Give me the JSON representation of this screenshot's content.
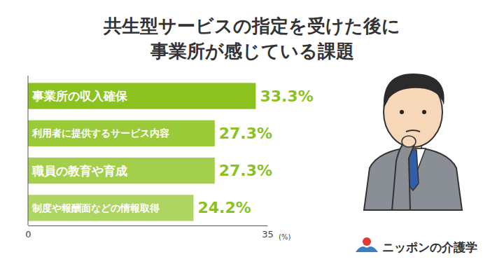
{
  "chart_data": {
    "type": "bar",
    "orientation": "horizontal",
    "title": "共生型サービスの指定を受けた後に\n事業所が感じている課題",
    "categories": [
      "事業所の収入確保",
      "利用者に提供するサービス内容",
      "職員の教育や育成",
      "制度や報酬面などの情報取得"
    ],
    "values": [
      33.3,
      27.3,
      27.3,
      24.2
    ],
    "value_labels": [
      "33.3%",
      "27.3%",
      "27.3%",
      "24.2%"
    ],
    "colors": [
      "#8cc21f",
      "#9aca38",
      "#a4cf4c",
      "#aed462"
    ],
    "xlim": [
      0,
      35
    ],
    "xticks": [
      0,
      35
    ],
    "x_label": "(%)",
    "data_labels": true,
    "grid": false,
    "annotations": [
      "ニッポンの介護学"
    ]
  }
}
